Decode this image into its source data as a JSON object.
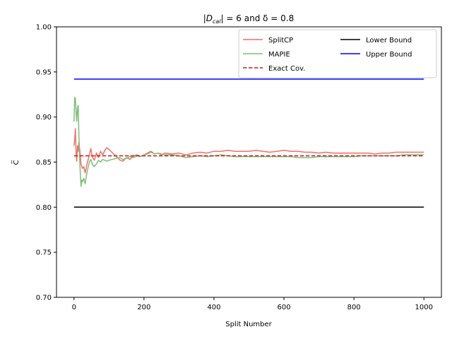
{
  "chart_data": {
    "type": "line",
    "title_parts": {
      "a": "|D",
      "sub": "cal",
      "b": "| = 6 and δ = 0.8"
    },
    "xlabel": "Split Number",
    "ylabel": "C̅",
    "xlim": [
      -50,
      1050
    ],
    "ylim": [
      0.7,
      1.0
    ],
    "xticks": [
      0,
      200,
      400,
      600,
      800,
      1000
    ],
    "yticks": [
      0.7,
      0.75,
      0.8,
      0.85,
      0.9,
      0.95,
      1.0
    ],
    "ytick_labels": [
      "0.70",
      "0.75",
      "0.80",
      "0.85",
      "0.90",
      "0.95",
      "1.00"
    ],
    "legend_position": "top-right",
    "series": [
      {
        "name": "SplitCP",
        "color": "#ef6f6a",
        "style": "solid",
        "alpha": 1,
        "points": [
          [
            0,
            0.868
          ],
          [
            2,
            0.875
          ],
          [
            4,
            0.887
          ],
          [
            6,
            0.86
          ],
          [
            8,
            0.851
          ],
          [
            10,
            0.868
          ],
          [
            12,
            0.862
          ],
          [
            14,
            0.872
          ],
          [
            16,
            0.865
          ],
          [
            18,
            0.858
          ],
          [
            20,
            0.848
          ],
          [
            24,
            0.843
          ],
          [
            28,
            0.845
          ],
          [
            32,
            0.838
          ],
          [
            36,
            0.846
          ],
          [
            40,
            0.852
          ],
          [
            44,
            0.858
          ],
          [
            48,
            0.865
          ],
          [
            52,
            0.856
          ],
          [
            58,
            0.852
          ],
          [
            64,
            0.86
          ],
          [
            70,
            0.855
          ],
          [
            76,
            0.862
          ],
          [
            82,
            0.858
          ],
          [
            88,
            0.863
          ],
          [
            94,
            0.866
          ],
          [
            100,
            0.864
          ],
          [
            108,
            0.861
          ],
          [
            116,
            0.858
          ],
          [
            124,
            0.855
          ],
          [
            132,
            0.852
          ],
          [
            140,
            0.851
          ],
          [
            150,
            0.855
          ],
          [
            160,
            0.853
          ],
          [
            170,
            0.857
          ],
          [
            180,
            0.858
          ],
          [
            190,
            0.856
          ],
          [
            200,
            0.858
          ],
          [
            210,
            0.86
          ],
          [
            220,
            0.862
          ],
          [
            230,
            0.859
          ],
          [
            240,
            0.86
          ],
          [
            250,
            0.858
          ],
          [
            260,
            0.86
          ],
          [
            280,
            0.859
          ],
          [
            300,
            0.86
          ],
          [
            320,
            0.858
          ],
          [
            340,
            0.86
          ],
          [
            360,
            0.861
          ],
          [
            380,
            0.86
          ],
          [
            400,
            0.862
          ],
          [
            420,
            0.862
          ],
          [
            440,
            0.863
          ],
          [
            460,
            0.862
          ],
          [
            480,
            0.862
          ],
          [
            500,
            0.862
          ],
          [
            520,
            0.863
          ],
          [
            540,
            0.862
          ],
          [
            560,
            0.861
          ],
          [
            580,
            0.862
          ],
          [
            600,
            0.863
          ],
          [
            620,
            0.862
          ],
          [
            640,
            0.862
          ],
          [
            660,
            0.861
          ],
          [
            680,
            0.861
          ],
          [
            700,
            0.86
          ],
          [
            720,
            0.861
          ],
          [
            740,
            0.86
          ],
          [
            760,
            0.86
          ],
          [
            780,
            0.86
          ],
          [
            800,
            0.86
          ],
          [
            820,
            0.86
          ],
          [
            840,
            0.86
          ],
          [
            860,
            0.859
          ],
          [
            880,
            0.86
          ],
          [
            900,
            0.86
          ],
          [
            920,
            0.861
          ],
          [
            940,
            0.861
          ],
          [
            960,
            0.861
          ],
          [
            980,
            0.861
          ],
          [
            1000,
            0.861
          ]
        ]
      },
      {
        "name": "MAPIE",
        "color": "#7dbf7a",
        "style": "solid",
        "alpha": 1,
        "points": [
          [
            0,
            0.895
          ],
          [
            2,
            0.922
          ],
          [
            4,
            0.92
          ],
          [
            6,
            0.905
          ],
          [
            8,
            0.895
          ],
          [
            10,
            0.91
          ],
          [
            12,
            0.913
          ],
          [
            14,
            0.88
          ],
          [
            16,
            0.855
          ],
          [
            18,
            0.838
          ],
          [
            20,
            0.823
          ],
          [
            22,
            0.83
          ],
          [
            24,
            0.828
          ],
          [
            28,
            0.832
          ],
          [
            32,
            0.826
          ],
          [
            36,
            0.836
          ],
          [
            40,
            0.844
          ],
          [
            44,
            0.85
          ],
          [
            48,
            0.853
          ],
          [
            52,
            0.848
          ],
          [
            58,
            0.845
          ],
          [
            64,
            0.848
          ],
          [
            70,
            0.852
          ],
          [
            76,
            0.85
          ],
          [
            82,
            0.853
          ],
          [
            88,
            0.852
          ],
          [
            94,
            0.851
          ],
          [
            100,
            0.852
          ],
          [
            110,
            0.853
          ],
          [
            120,
            0.854
          ],
          [
            130,
            0.855
          ],
          [
            140,
            0.853
          ],
          [
            150,
            0.854
          ],
          [
            160,
            0.856
          ],
          [
            170,
            0.855
          ],
          [
            180,
            0.857
          ],
          [
            190,
            0.856
          ],
          [
            200,
            0.858
          ],
          [
            210,
            0.859
          ],
          [
            220,
            0.861
          ],
          [
            230,
            0.859
          ],
          [
            240,
            0.86
          ],
          [
            260,
            0.858
          ],
          [
            280,
            0.858
          ],
          [
            300,
            0.857
          ],
          [
            320,
            0.855
          ],
          [
            340,
            0.856
          ],
          [
            360,
            0.857
          ],
          [
            380,
            0.856
          ],
          [
            400,
            0.857
          ],
          [
            420,
            0.858
          ],
          [
            440,
            0.857
          ],
          [
            460,
            0.856
          ],
          [
            480,
            0.856
          ],
          [
            500,
            0.856
          ],
          [
            520,
            0.856
          ],
          [
            540,
            0.856
          ],
          [
            560,
            0.856
          ],
          [
            580,
            0.856
          ],
          [
            600,
            0.856
          ],
          [
            620,
            0.856
          ],
          [
            640,
            0.855
          ],
          [
            660,
            0.855
          ],
          [
            680,
            0.855
          ],
          [
            700,
            0.856
          ],
          [
            720,
            0.856
          ],
          [
            740,
            0.856
          ],
          [
            760,
            0.856
          ],
          [
            780,
            0.856
          ],
          [
            800,
            0.856
          ],
          [
            820,
            0.857
          ],
          [
            840,
            0.857
          ],
          [
            860,
            0.857
          ],
          [
            880,
            0.857
          ],
          [
            900,
            0.857
          ],
          [
            920,
            0.857
          ],
          [
            940,
            0.858
          ],
          [
            960,
            0.858
          ],
          [
            980,
            0.858
          ],
          [
            1000,
            0.858
          ]
        ]
      },
      {
        "name": "Exact Cov.",
        "color": "#cc1a1a",
        "style": "dashed",
        "alpha": 1,
        "points": [
          [
            0,
            0.857
          ],
          [
            1000,
            0.857
          ]
        ]
      },
      {
        "name": "Lower Bound",
        "color": "#000000",
        "style": "solid",
        "alpha": 1,
        "points": [
          [
            0,
            0.8
          ],
          [
            1000,
            0.8
          ]
        ]
      },
      {
        "name": "Upper Bound",
        "color": "#0000ff",
        "style": "solid",
        "alpha": 1,
        "points": [
          [
            0,
            0.942
          ],
          [
            1000,
            0.942
          ]
        ]
      }
    ]
  }
}
